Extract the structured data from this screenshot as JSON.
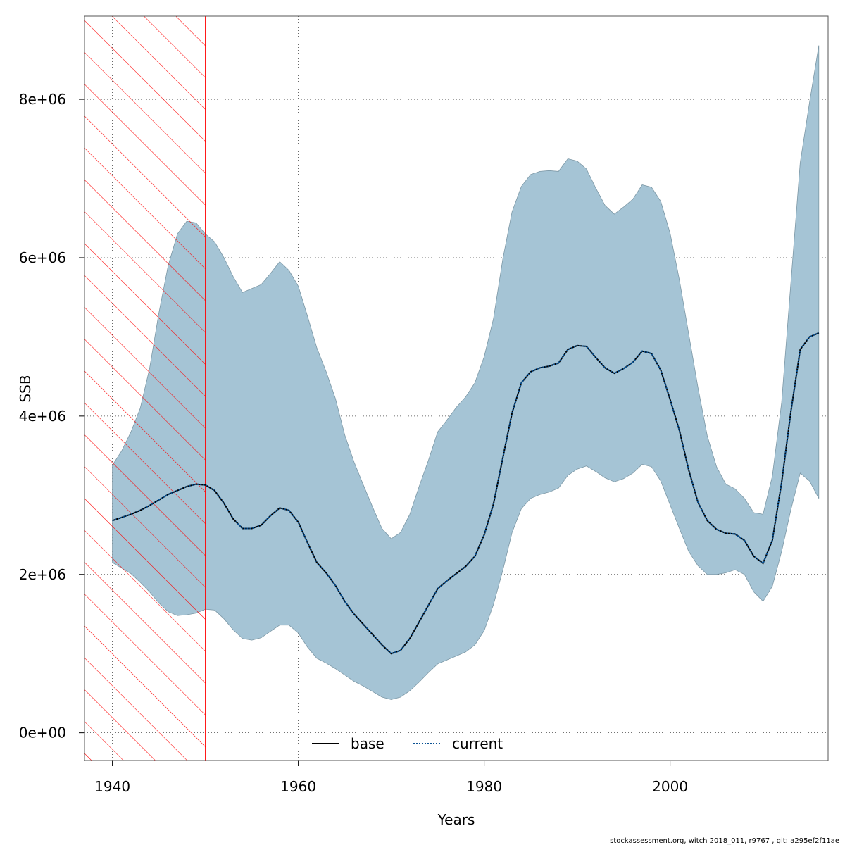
{
  "chart_data": {
    "type": "area",
    "title": "",
    "xlabel": "Years",
    "ylabel": "SSB",
    "xlim": [
      1937,
      2017
    ],
    "ylim": [
      -350000,
      9050000
    ],
    "x_ticks": [
      1940,
      1960,
      1980,
      2000
    ],
    "x_tick_labels": [
      "1940",
      "1960",
      "1980",
      "2000"
    ],
    "y_ticks": [
      0,
      2000000,
      4000000,
      6000000,
      8000000
    ],
    "y_tick_labels": [
      "0e+00",
      "2e+06",
      "4e+06",
      "6e+06",
      "8e+06"
    ],
    "grid": true,
    "shaded_region": {
      "x_start": 1937,
      "x_end": 1950,
      "color": "#ff0000"
    },
    "band_color": "#a5c4d5",
    "legend": {
      "position": "bottom-center",
      "entries": [
        {
          "label": "base",
          "style": "solid",
          "color": "#000000"
        },
        {
          "label": "current",
          "style": "dotted",
          "color": "#0b5394"
        }
      ]
    },
    "x": [
      1940,
      1941,
      1942,
      1943,
      1944,
      1945,
      1946,
      1947,
      1948,
      1949,
      1950,
      1951,
      1952,
      1953,
      1954,
      1955,
      1956,
      1957,
      1958,
      1959,
      1960,
      1961,
      1962,
      1963,
      1964,
      1965,
      1966,
      1967,
      1968,
      1969,
      1970,
      1971,
      1972,
      1973,
      1974,
      1975,
      1976,
      1977,
      1978,
      1979,
      1980,
      1981,
      1982,
      1983,
      1984,
      1985,
      1986,
      1987,
      1988,
      1989,
      1990,
      1991,
      1992,
      1993,
      1994,
      1995,
      1996,
      1997,
      1998,
      1999,
      2000,
      2001,
      2002,
      2003,
      2004,
      2005,
      2006,
      2007,
      2008,
      2009,
      2010,
      2011,
      2012,
      2013,
      2014,
      2015,
      2016
    ],
    "series": [
      {
        "name": "current",
        "values": [
          2680000,
          2720000,
          2760000,
          2810000,
          2870000,
          2940000,
          3010000,
          3060000,
          3110000,
          3140000,
          3130000,
          3060000,
          2900000,
          2700000,
          2580000,
          2580000,
          2620000,
          2740000,
          2840000,
          2810000,
          2660000,
          2400000,
          2150000,
          2020000,
          1860000,
          1660000,
          1500000,
          1370000,
          1240000,
          1110000,
          1000000,
          1040000,
          1190000,
          1400000,
          1610000,
          1820000,
          1920000,
          2010000,
          2100000,
          2230000,
          2500000,
          2890000,
          3470000,
          4040000,
          4420000,
          4560000,
          4610000,
          4630000,
          4670000,
          4840000,
          4890000,
          4880000,
          4740000,
          4610000,
          4540000,
          4600000,
          4680000,
          4820000,
          4790000,
          4580000,
          4210000,
          3820000,
          3320000,
          2910000,
          2680000,
          2570000,
          2520000,
          2510000,
          2430000,
          2230000,
          2140000,
          2430000,
          3160000,
          4060000,
          4840000,
          5000000,
          5050000
        ]
      }
    ],
    "band": {
      "upper": [
        3380000,
        3560000,
        3800000,
        4100000,
        4600000,
        5300000,
        5900000,
        6300000,
        6460000,
        6440000,
        6300000,
        6200000,
        6000000,
        5760000,
        5560000,
        5610000,
        5660000,
        5800000,
        5950000,
        5840000,
        5640000,
        5260000,
        4860000,
        4560000,
        4220000,
        3760000,
        3420000,
        3130000,
        2850000,
        2580000,
        2450000,
        2530000,
        2760000,
        3110000,
        3440000,
        3800000,
        3950000,
        4110000,
        4240000,
        4420000,
        4750000,
        5230000,
        5980000,
        6580000,
        6900000,
        7050000,
        7090000,
        7100000,
        7090000,
        7250000,
        7220000,
        7120000,
        6880000,
        6660000,
        6550000,
        6640000,
        6740000,
        6920000,
        6890000,
        6710000,
        6310000,
        5720000,
        5040000,
        4360000,
        3750000,
        3360000,
        3140000,
        3080000,
        2960000,
        2780000,
        2760000,
        3240000,
        4170000,
        5690000,
        7200000,
        7960000,
        8680000
      ],
      "lower": [
        2150000,
        2080000,
        2010000,
        1900000,
        1780000,
        1640000,
        1530000,
        1480000,
        1490000,
        1510000,
        1560000,
        1550000,
        1440000,
        1300000,
        1190000,
        1170000,
        1200000,
        1280000,
        1360000,
        1360000,
        1260000,
        1080000,
        940000,
        880000,
        810000,
        730000,
        650000,
        590000,
        520000,
        450000,
        420000,
        450000,
        530000,
        640000,
        760000,
        870000,
        920000,
        970000,
        1020000,
        1110000,
        1290000,
        1620000,
        2050000,
        2530000,
        2830000,
        2960000,
        3010000,
        3040000,
        3090000,
        3250000,
        3330000,
        3370000,
        3300000,
        3220000,
        3170000,
        3210000,
        3280000,
        3390000,
        3360000,
        3180000,
        2880000,
        2580000,
        2290000,
        2110000,
        2000000,
        2000000,
        2020000,
        2060000,
        2000000,
        1780000,
        1660000,
        1850000,
        2290000,
        2820000,
        3280000,
        3180000,
        2960000
      ]
    }
  },
  "footer": {
    "text": "stockassessment.org, witch  2018_011, r9767 , git: a295ef2f11ae"
  }
}
